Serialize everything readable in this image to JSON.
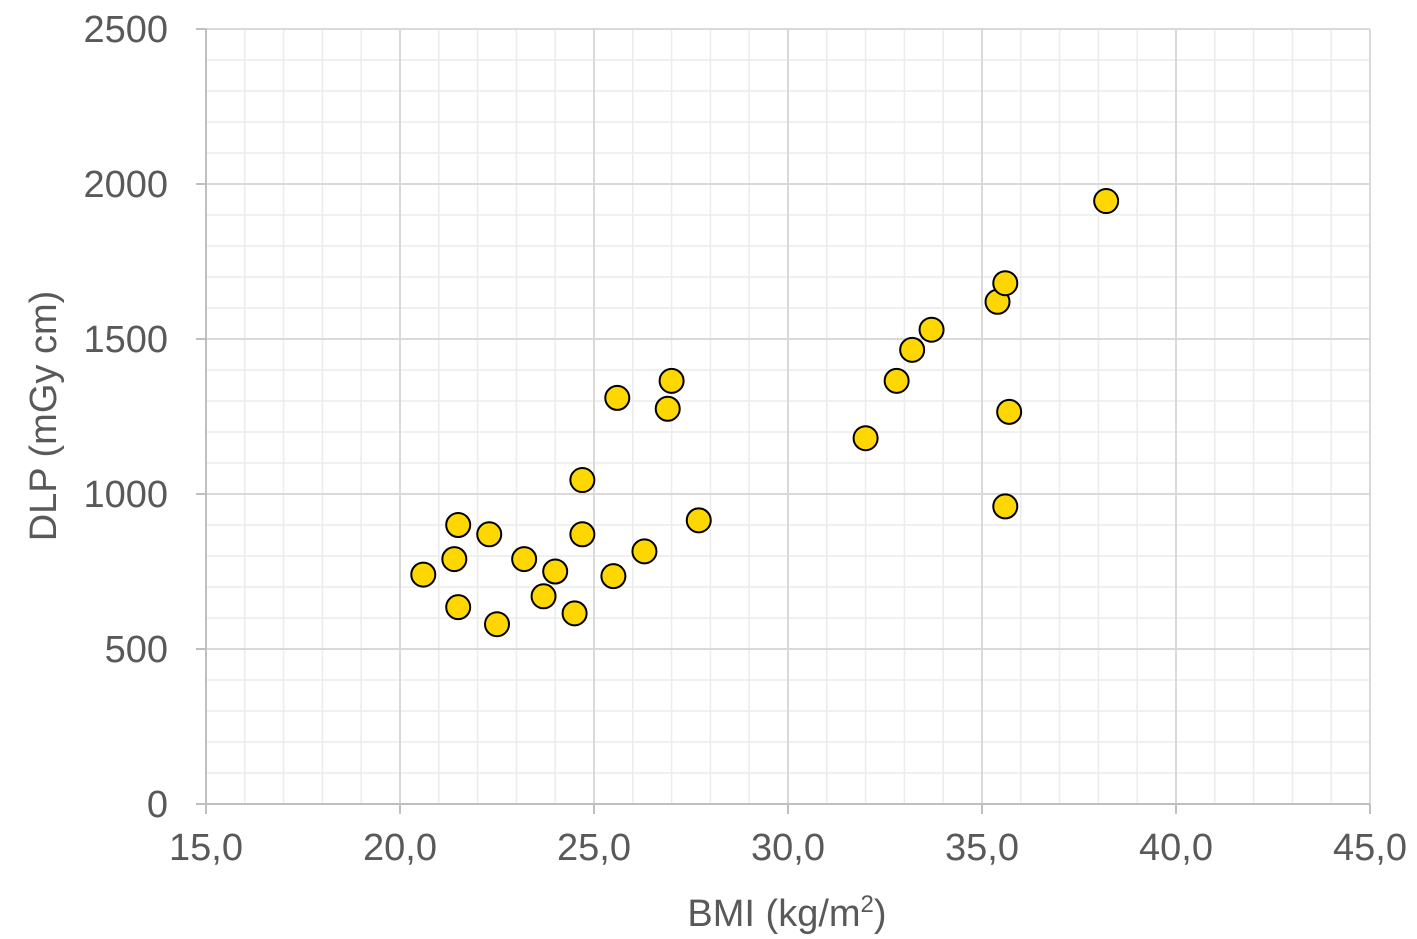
{
  "chart_data": {
    "type": "scatter",
    "title": "",
    "xlabel": {
      "main": "BMI (kg/m",
      "sup": "2",
      "end": ")"
    },
    "ylabel": "DLP (mGy cm)",
    "xlim": [
      15,
      45
    ],
    "ylim": [
      0,
      2500
    ],
    "x_ticks": [
      15,
      20,
      25,
      30,
      35,
      40,
      45
    ],
    "x_tick_labels": [
      "15,0",
      "20,0",
      "25,0",
      "30,0",
      "35,0",
      "40,0",
      "45,0"
    ],
    "y_ticks": [
      0,
      500,
      1000,
      1500,
      2000,
      2500
    ],
    "y_tick_labels": [
      "0",
      "500",
      "1000",
      "1500",
      "2000",
      "2500"
    ],
    "x_minor_step": 1,
    "y_minor_step": 100,
    "grid": true,
    "marker_color": "#FFD700",
    "marker_edge_color": "#000000",
    "points": [
      {
        "x": 20.6,
        "y": 740
      },
      {
        "x": 21.4,
        "y": 790
      },
      {
        "x": 21.5,
        "y": 900
      },
      {
        "x": 21.5,
        "y": 635
      },
      {
        "x": 22.3,
        "y": 870
      },
      {
        "x": 22.5,
        "y": 580
      },
      {
        "x": 23.2,
        "y": 790
      },
      {
        "x": 23.7,
        "y": 670
      },
      {
        "x": 24.0,
        "y": 750
      },
      {
        "x": 24.5,
        "y": 615
      },
      {
        "x": 24.7,
        "y": 1045
      },
      {
        "x": 24.7,
        "y": 870
      },
      {
        "x": 25.5,
        "y": 735
      },
      {
        "x": 25.6,
        "y": 1310
      },
      {
        "x": 26.3,
        "y": 815
      },
      {
        "x": 26.9,
        "y": 1275
      },
      {
        "x": 27.0,
        "y": 1365
      },
      {
        "x": 27.7,
        "y": 915
      },
      {
        "x": 32.0,
        "y": 1180
      },
      {
        "x": 32.8,
        "y": 1365
      },
      {
        "x": 33.2,
        "y": 1465
      },
      {
        "x": 33.7,
        "y": 1530
      },
      {
        "x": 35.4,
        "y": 1620
      },
      {
        "x": 35.6,
        "y": 1680
      },
      {
        "x": 35.6,
        "y": 960
      },
      {
        "x": 35.7,
        "y": 1265
      },
      {
        "x": 38.2,
        "y": 1945
      }
    ]
  }
}
